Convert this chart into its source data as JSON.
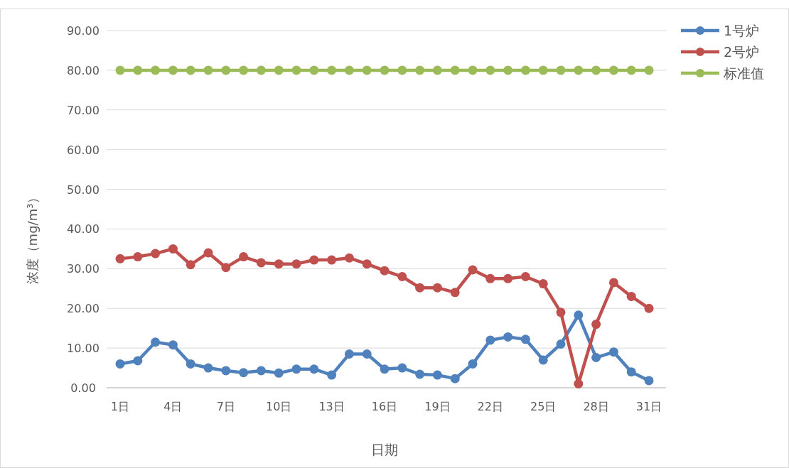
{
  "chart_data": {
    "type": "line",
    "xlabel": "日期",
    "ylabel": "浓度（mg/m³）",
    "categories": [
      "1日",
      null,
      null,
      "4日",
      null,
      null,
      "7日",
      null,
      null,
      "10日",
      null,
      null,
      "13日",
      null,
      null,
      "16日",
      null,
      null,
      "19日",
      null,
      null,
      "22日",
      null,
      null,
      "25日",
      null,
      null,
      "28日",
      null,
      null,
      "31日"
    ],
    "series": [
      {
        "name": "1号炉",
        "color": "#4f81bd",
        "values": [
          6,
          6.8,
          11.5,
          10.8,
          6,
          5,
          4.3,
          3.8,
          4.3,
          3.7,
          4.7,
          4.7,
          3.2,
          8.5,
          8.5,
          4.7,
          5,
          3.4,
          3.2,
          2.3,
          6,
          12,
          12.8,
          12.2,
          7,
          11,
          18.3,
          7.6,
          9,
          4,
          1.8
        ]
      },
      {
        "name": "2号炉",
        "color": "#c0504d",
        "values": [
          32.5,
          33,
          33.8,
          35,
          31,
          34,
          30.3,
          33,
          31.5,
          31.2,
          31.2,
          32.2,
          32.2,
          32.7,
          31.2,
          29.5,
          28,
          25.2,
          25.2,
          24,
          29.7,
          27.5,
          27.5,
          28,
          26.2,
          19,
          1,
          16,
          26.5,
          23,
          20
        ]
      },
      {
        "name": "标准值",
        "color": "#9bbb59",
        "values": [
          80,
          80,
          80,
          80,
          80,
          80,
          80,
          80,
          80,
          80,
          80,
          80,
          80,
          80,
          80,
          80,
          80,
          80,
          80,
          80,
          80,
          80,
          80,
          80,
          80,
          80,
          80,
          80,
          80,
          80,
          80
        ]
      }
    ],
    "ylim": [
      0,
      90
    ],
    "yticks": [
      {
        "value": 0,
        "label": "0.00"
      },
      {
        "value": 10,
        "label": "10.00"
      },
      {
        "value": 20,
        "label": "20.00"
      },
      {
        "value": 30,
        "label": "30.00"
      },
      {
        "value": 40,
        "label": "40.00"
      },
      {
        "value": 50,
        "label": "50.00"
      },
      {
        "value": 60,
        "label": "60.00"
      },
      {
        "value": 70,
        "label": "70.00"
      },
      {
        "value": 80,
        "label": "80.00"
      },
      {
        "value": 90,
        "label": "90.00"
      }
    ],
    "grid": "y",
    "legend": "top right",
    "marker": "circle",
    "line_style": "solid"
  }
}
